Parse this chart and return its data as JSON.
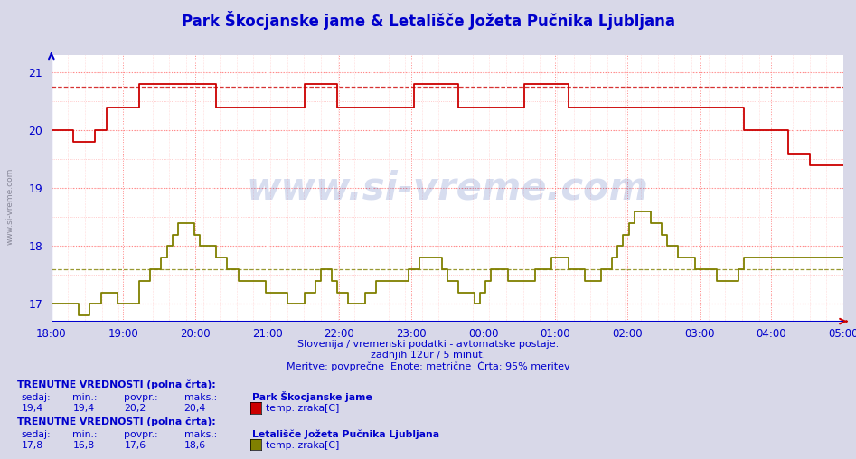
{
  "title": "Park Škocjanske jame & Letališče Jožeta Pučnika Ljubljana",
  "subtitle1": "Slovenija / vremenski podatki - avtomatske postaje.",
  "subtitle2": "zadnjih 12ur / 5 minut.",
  "subtitle3": "Meritve: povprečne  Enote: metrične  Črta: 95% meritev",
  "xlabel_times": [
    "18:00",
    "19:00",
    "20:00",
    "21:00",
    "22:00",
    "23:00",
    "00:00",
    "01:00",
    "02:00",
    "03:00",
    "04:00",
    "05:00"
  ],
  "ylim": [
    16.7,
    21.3
  ],
  "yticks": [
    17,
    18,
    19,
    20,
    21
  ],
  "bg_color": "#d8d8e8",
  "plot_bg": "#ffffff",
  "grid_color_major": "#ff8888",
  "grid_color_minor": "#ffbbbb",
  "line1_color": "#cc0000",
  "line2_color": "#808000",
  "avg_line1_color": "#cc0000",
  "avg_line2_color": "#808000",
  "avg_line1_value": 20.75,
  "avg_line2_value": 17.6,
  "watermark": "www.si-vreme.com",
  "stat1_label": "Park Škocjanske jame",
  "stat1_sedaj": "19,4",
  "stat1_min": "19,4",
  "stat1_povpr": "20,2",
  "stat1_maks": "20,4",
  "stat1_color": "#cc0000",
  "stat2_label": "Letališče Jožeta Pučnika Ljubljana",
  "stat2_sedaj": "17,8",
  "stat2_min": "16,8",
  "stat2_povpr": "17,6",
  "stat2_maks": "18,6",
  "stat2_color": "#808000",
  "n_points": 145,
  "left_label": "www.si-vreme.com"
}
